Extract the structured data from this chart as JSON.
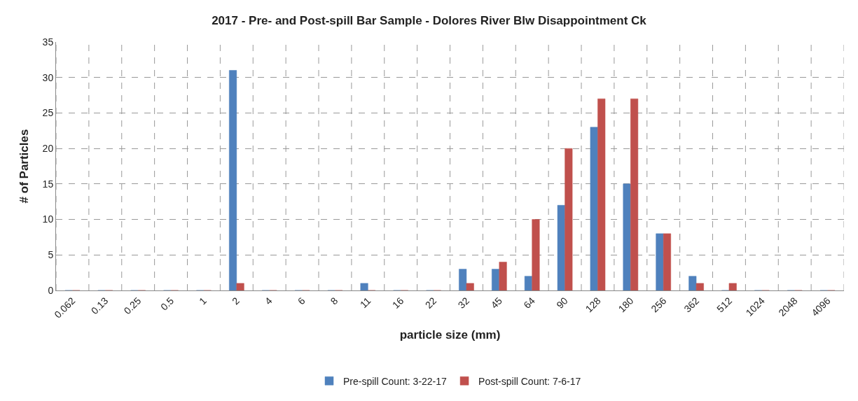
{
  "chart_data": {
    "type": "bar",
    "title": "2017 - Pre- and Post-spill Bar Sample - Dolores River Blw Disappointment Ck",
    "xlabel": "particle size (mm)",
    "ylabel": "# of Particles",
    "categories": [
      "0.062",
      "0.13",
      "0.25",
      "0.5",
      "1",
      "2",
      "4",
      "6",
      "8",
      "11",
      "16",
      "22",
      "32",
      "45",
      "64",
      "90",
      "128",
      "180",
      "256",
      "362",
      "512",
      "1024",
      "2048",
      "4096"
    ],
    "series": [
      {
        "name": "Pre-spill Count: 3-22-17",
        "color": "#4f81bd",
        "values": [
          0,
          0,
          0,
          0,
          0,
          31,
          0,
          0,
          0,
          1,
          0,
          0,
          3,
          3,
          2,
          12,
          23,
          15,
          8,
          2,
          0,
          0,
          0,
          0
        ]
      },
      {
        "name": "Post-spill Count: 7-6-17",
        "color": "#c0504d",
        "values": [
          0,
          0,
          0,
          0,
          0,
          1,
          0,
          0,
          0,
          0,
          0,
          0,
          1,
          4,
          10,
          20,
          27,
          27,
          8,
          1,
          1,
          0,
          0,
          0
        ]
      }
    ],
    "ylim": [
      0,
      35
    ],
    "yticks": [
      0,
      5,
      10,
      15,
      20,
      25,
      30,
      35
    ],
    "grid": true,
    "legend": "bottom"
  }
}
